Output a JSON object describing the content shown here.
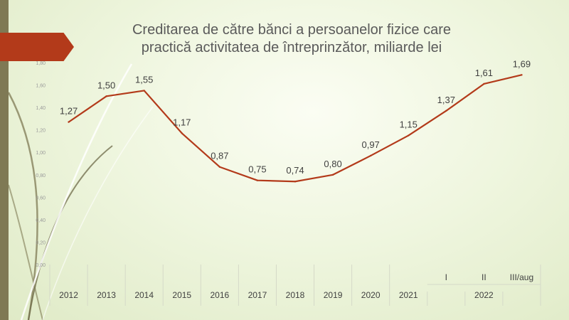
{
  "title_line1": "Creditarea de către bănci a persoanelor fizice care",
  "title_line2": "practică activitatea de întreprinzător, miliarde lei",
  "colors": {
    "line": "#b33a1a",
    "accent_bar": "#7f7954",
    "banner": "#b33a1a"
  },
  "chart_data": {
    "type": "line",
    "title": "Creditarea de către bănci a persoanelor fizice care practică activitatea de întreprinzător, miliarde lei",
    "categories": [
      "2012",
      "2013",
      "2014",
      "2015",
      "2016",
      "2017",
      "2018",
      "2019",
      "2020",
      "2021",
      "I",
      "II",
      "III/aug"
    ],
    "group_labels": [
      "2022"
    ],
    "values": [
      1.27,
      1.5,
      1.55,
      1.17,
      0.87,
      0.75,
      0.74,
      0.8,
      0.97,
      1.15,
      1.37,
      1.61,
      1.69
    ],
    "value_labels": [
      "1,27",
      "1,50",
      "1,55",
      "1,17",
      "0,87",
      "0,75",
      "0,74",
      "0,80",
      "0,97",
      "1,15",
      "1,37",
      "1,61",
      "1,69"
    ],
    "y_ticks": [
      "0,00",
      "0,20",
      "0,40",
      "0,60",
      "0,80",
      "1,00",
      "1,20",
      "1,40",
      "1,60",
      "1,80"
    ],
    "ylim": [
      0,
      1.8
    ],
    "grid": false,
    "legend": false
  }
}
